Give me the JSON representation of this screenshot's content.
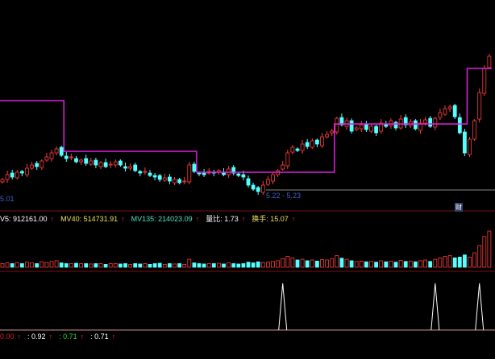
{
  "colors": {
    "up": "#ff3b3b",
    "down": "#54ffff",
    "step": "#e020e0",
    "separator": "#7a1010",
    "signal": "#ffffff"
  },
  "labels": {
    "low_left": "5.01",
    "range_mid": "5.22 - 5.23",
    "badge": "财"
  },
  "volume_bar": {
    "items": [
      {
        "label": "V5: 912161.00",
        "color": "#ffffff"
      },
      {
        "label": "MV40: 514731.91",
        "color": "#e8e060"
      },
      {
        "label": "MV135: 214023.09",
        "color": "#50e0c0"
      },
      {
        "label": "量比: 1.73",
        "color": "#ffffff"
      },
      {
        "label": "换手: 15.07",
        "color": "#f0e060"
      }
    ],
    "arrow": "↑"
  },
  "signal_bar": {
    "items": [
      {
        "label": "0.00",
        "color": "#d02020"
      },
      {
        "label": ": 0.92",
        "color": "#ffffff"
      },
      {
        "label": ": 0.71",
        "color": "#30d030"
      },
      {
        "label": ": 0.71",
        "color": "#ffffff"
      }
    ],
    "arrow": "↑"
  },
  "chart_data": {
    "type": "candlestick",
    "ylim": [
      4.95,
      6.9
    ],
    "close": [
      5.22,
      5.28,
      5.25,
      5.31,
      5.3,
      5.36,
      5.4,
      5.38,
      5.45,
      5.5,
      5.55,
      5.6,
      5.52,
      5.48,
      5.5,
      5.44,
      5.46,
      5.42,
      5.45,
      5.4,
      5.43,
      5.38,
      5.41,
      5.44,
      5.4,
      5.36,
      5.38,
      5.33,
      5.3,
      5.32,
      5.27,
      5.25,
      5.22,
      5.24,
      5.2,
      5.22,
      5.18,
      5.2,
      5.4,
      5.32,
      5.3,
      5.28,
      5.32,
      5.3,
      5.33,
      5.28,
      5.35,
      5.3,
      5.27,
      5.25,
      5.15,
      5.1,
      5.07,
      5.15,
      5.22,
      5.28,
      5.33,
      5.4,
      5.55,
      5.62,
      5.58,
      5.66,
      5.63,
      5.7,
      5.66,
      5.75,
      5.78,
      5.82,
      5.98,
      5.9,
      5.95,
      5.82,
      5.86,
      5.9,
      5.84,
      5.88,
      5.8,
      5.92,
      5.88,
      5.95,
      5.86,
      5.97,
      5.9,
      5.94,
      5.85,
      5.92,
      5.96,
      5.88,
      5.98,
      6.05,
      6.1,
      6.12,
      6.0,
      5.8,
      5.55,
      5.72,
      5.95,
      6.3,
      6.6,
      6.75
    ],
    "step_line": [
      {
        "from": 0,
        "to": 12,
        "value": 6.2
      },
      {
        "from": 13,
        "to": 39,
        "value": 5.57
      },
      {
        "from": 40,
        "to": 67,
        "value": 5.31
      },
      {
        "from": 68,
        "to": 94,
        "value": 5.91
      },
      {
        "from": 95,
        "to": 99,
        "value": 6.6
      }
    ],
    "reference_line": 5.09,
    "volume": [
      1,
      1.2,
      1,
      1.3,
      1,
      1.4,
      1.2,
      1,
      1.5,
      1.3,
      1.6,
      1.8,
      1.2,
      1,
      1,
      1.1,
      1,
      1,
      0.9,
      1,
      1,
      0.8,
      1,
      1,
      0.9,
      1,
      0.8,
      1,
      0.9,
      1,
      0.8,
      1,
      1.1,
      0.8,
      1,
      0.9,
      1,
      0.8,
      2.2,
      1.2,
      1,
      0.9,
      1,
      1,
      1.1,
      0.9,
      1.2,
      1,
      0.9,
      1,
      1.4,
      1.2,
      1.5,
      1.3,
      1.4,
      1.6,
      1.8,
      2.4,
      3,
      2.6,
      2,
      2.2,
      1.8,
      2,
      1.7,
      2.1,
      2,
      2.4,
      3.2,
      2.5,
      2.2,
      1.8,
      1.6,
      1.7,
      1.5,
      1.6,
      1.4,
      1.8,
      1.5,
      1.7,
      1.4,
      1.9,
      1.6,
      1.7,
      1.5,
      1.8,
      2,
      1.6,
      2.2,
      2.6,
      3,
      3.2,
      2.6,
      2.8,
      3.4,
      2.8,
      4,
      6,
      8.5,
      10
    ],
    "signal": [
      0,
      0,
      0,
      0,
      0,
      0,
      0,
      0,
      0,
      0,
      0,
      0,
      0,
      0,
      0,
      0,
      0,
      0,
      0,
      0,
      0,
      0,
      0,
      0,
      0,
      0,
      0,
      0,
      0,
      0,
      0,
      0,
      0,
      0,
      0,
      0,
      0,
      0,
      0,
      0,
      0,
      0,
      0,
      0,
      0,
      0,
      0,
      0,
      0,
      0,
      0,
      0,
      0,
      0,
      0,
      0,
      0,
      1,
      0,
      0,
      0,
      0,
      0,
      0,
      0,
      0,
      0,
      0,
      0,
      0,
      0,
      0,
      0,
      0,
      0,
      0,
      0,
      0,
      0,
      0,
      0,
      0,
      0,
      0,
      0,
      0,
      0,
      0,
      1,
      0,
      0,
      0,
      0,
      0,
      0,
      0,
      0,
      1,
      0,
      0
    ]
  }
}
